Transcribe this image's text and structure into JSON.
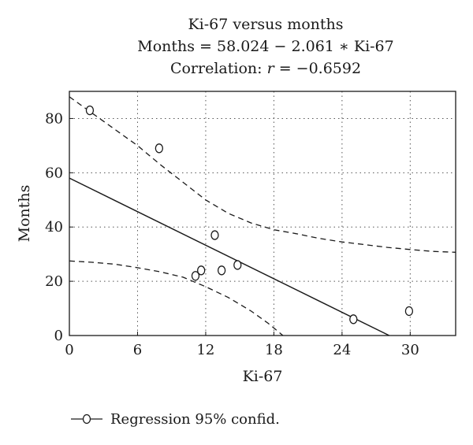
{
  "chart_data": {
    "type": "scatter",
    "title": "Ki-67 versus months",
    "equation": "Months =  58.024 − 2.061 ∗ Ki-67",
    "correlation_label": "Correlation: ",
    "correlation_var": "r",
    "correlation_value": " = −0.6592",
    "xlabel": "Ki-67",
    "ylabel": "Months",
    "xlim": [
      0,
      34
    ],
    "ylim": [
      0,
      90
    ],
    "xticks": [
      0,
      6,
      12,
      18,
      24,
      30
    ],
    "yticks": [
      0,
      20,
      40,
      60,
      80
    ],
    "grid": true,
    "legend_position": "bottom-left",
    "legend_label": "Regression 95% confid.",
    "points": [
      {
        "x": 1.8,
        "y": 83
      },
      {
        "x": 7.9,
        "y": 69
      },
      {
        "x": 11.1,
        "y": 22
      },
      {
        "x": 11.6,
        "y": 24
      },
      {
        "x": 12.8,
        "y": 37
      },
      {
        "x": 13.4,
        "y": 24
      },
      {
        "x": 14.8,
        "y": 26
      },
      {
        "x": 25.0,
        "y": 6
      },
      {
        "x": 29.9,
        "y": 9
      }
    ],
    "regression": {
      "intercept": 58.024,
      "slope": -2.061
    },
    "confidence_upper": [
      {
        "x": 0,
        "y": 88
      },
      {
        "x": 2,
        "y": 82
      },
      {
        "x": 4,
        "y": 76
      },
      {
        "x": 6,
        "y": 70
      },
      {
        "x": 8,
        "y": 63
      },
      {
        "x": 10,
        "y": 56.5
      },
      {
        "x": 12,
        "y": 50
      },
      {
        "x": 14,
        "y": 45
      },
      {
        "x": 16,
        "y": 41.5
      },
      {
        "x": 18,
        "y": 39
      },
      {
        "x": 20,
        "y": 37.5
      },
      {
        "x": 22,
        "y": 35.8
      },
      {
        "x": 24,
        "y": 34.5
      },
      {
        "x": 26,
        "y": 33.5
      },
      {
        "x": 28,
        "y": 32.5
      },
      {
        "x": 30,
        "y": 31.7
      },
      {
        "x": 32,
        "y": 31
      },
      {
        "x": 34,
        "y": 30.7
      }
    ],
    "confidence_lower": [
      {
        "x": 0,
        "y": 27.5
      },
      {
        "x": 2,
        "y": 27
      },
      {
        "x": 4,
        "y": 26.3
      },
      {
        "x": 6,
        "y": 25
      },
      {
        "x": 8,
        "y": 23.5
      },
      {
        "x": 10,
        "y": 21.5
      },
      {
        "x": 12,
        "y": 18
      },
      {
        "x": 14,
        "y": 14
      },
      {
        "x": 16,
        "y": 9
      },
      {
        "x": 17.5,
        "y": 4.5
      },
      {
        "x": 18.8,
        "y": 0
      }
    ],
    "colors": {
      "line": "#1a1a1a",
      "marker_fill": "#ffffff",
      "background": "#ffffff"
    }
  }
}
